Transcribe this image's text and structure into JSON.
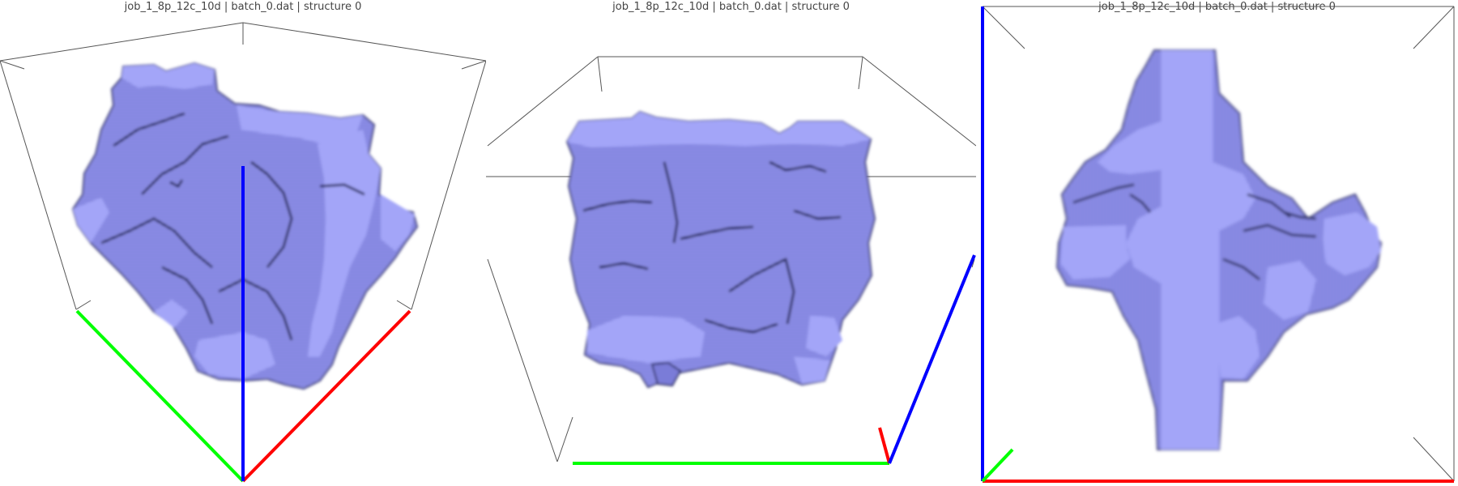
{
  "panels": [
    {
      "title": "job_1_8p_12c_10d | batch_0.dat | structure 0"
    },
    {
      "title": "job_1_8p_12c_10d | batch_0.dat | structure 0"
    },
    {
      "title": "job_1_8p_12c_10d | batch_0.dat | structure 0"
    }
  ],
  "colors": {
    "structure_fill": "#9a9cf4",
    "structure_shadow": "#3c3e78",
    "box_line": "#444444",
    "axis_x": "#ff0000",
    "axis_y": "#00ff00",
    "axis_z": "#0000ff",
    "background": "#ffffff"
  }
}
